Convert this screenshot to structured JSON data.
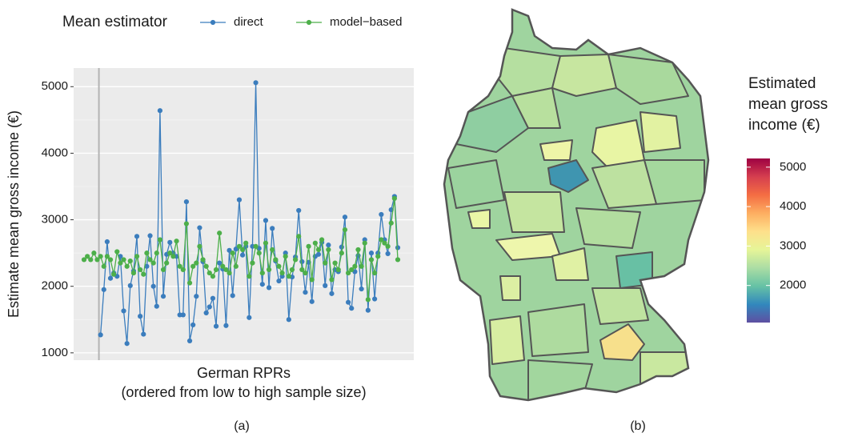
{
  "chart_data": [
    {
      "type": "line",
      "legend_title": "Mean estimator",
      "legend": "top",
      "ylabel": "Estimate mean gross income (€)",
      "xlabel_lines": [
        "German RPRs",
        "(ordered from low to high sample size)"
      ],
      "caption": "(a)",
      "ylim": [
        890,
        5280
      ],
      "yticks": [
        1000,
        2000,
        3000,
        4000,
        5000
      ],
      "grid": true,
      "series": [
        {
          "name": "direct",
          "color": "#3b7dbd",
          "values": [
            null,
            null,
            null,
            null,
            null,
            1270,
            1950,
            2670,
            2120,
            2200,
            2150,
            2450,
            1630,
            1140,
            2010,
            2230,
            2750,
            1550,
            1280,
            2300,
            2760,
            2000,
            1700,
            4640,
            1850,
            2480,
            2660,
            2500,
            2450,
            1570,
            1570,
            3270,
            1180,
            1420,
            1850,
            2880,
            2370,
            1600,
            1690,
            1820,
            1400,
            2350,
            2260,
            1410,
            2540,
            1860,
            2560,
            3300,
            2470,
            2600,
            1530,
            2600,
            5060,
            2570,
            2030,
            2990,
            1980,
            2870,
            2380,
            2080,
            2150,
            2500,
            1500,
            2140,
            2440,
            3140,
            2370,
            1910,
            2360,
            1770,
            2450,
            2480,
            2660,
            2010,
            2620,
            1890,
            2250,
            2220,
            2590,
            3040,
            1760,
            1670,
            2220,
            2460,
            1960,
            2700,
            1640,
            2500,
            1810,
            2500,
            3080,
            2700,
            2490,
            3150,
            3350,
            2580
          ]
        },
        {
          "name": "model−based",
          "color": "#4daf4a",
          "values": [
            2400,
            2450,
            2400,
            2500,
            2400,
            2450,
            2300,
            2450,
            2400,
            2180,
            2520,
            2350,
            2400,
            2300,
            2380,
            2200,
            2450,
            2250,
            2180,
            2500,
            2400,
            2350,
            2500,
            2700,
            2250,
            2350,
            2500,
            2450,
            2680,
            2300,
            2250,
            2940,
            2050,
            2300,
            2350,
            2600,
            2400,
            2300,
            2200,
            2150,
            2250,
            2800,
            2300,
            2250,
            2200,
            2500,
            2300,
            2600,
            2550,
            2650,
            2150,
            2350,
            2600,
            2500,
            2200,
            2650,
            2250,
            2550,
            2400,
            2300,
            2200,
            2450,
            2150,
            2250,
            2400,
            2750,
            2250,
            2200,
            2600,
            2100,
            2650,
            2550,
            2700,
            2350,
            2550,
            2100,
            2350,
            2250,
            2500,
            2850,
            2200,
            2250,
            2300,
            2550,
            2300,
            2650,
            1800,
            2400,
            2200,
            2450,
            2700,
            2650,
            2600,
            2950,
            3320,
            2400
          ]
        }
      ]
    },
    {
      "type": "choropleth",
      "legend_title": [
        "Estimated",
        "mean gross",
        "income (€)"
      ],
      "caption": "(b)",
      "clim": [
        1060,
        5220
      ],
      "ticks": [
        2000,
        3000,
        4000,
        5000
      ],
      "colors": [
        "#5e4fa2",
        "#3288bd",
        "#66c2a5",
        "#abdda4",
        "#e6f598",
        "#fee08b",
        "#fdae61",
        "#f46d43",
        "#d53e4f",
        "#9e0142"
      ]
    }
  ]
}
